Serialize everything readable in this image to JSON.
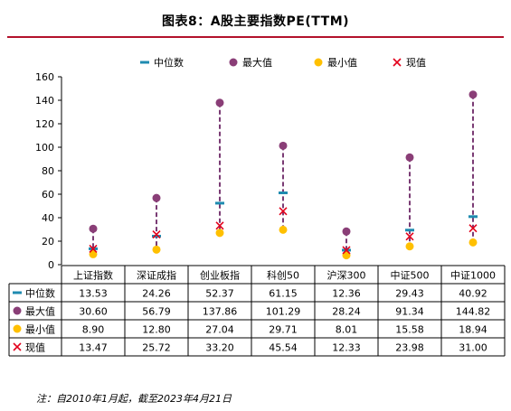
{
  "header": {
    "title": "图表8：A股主要指数PE(TTM)"
  },
  "footer": {
    "note": "注：自2010年1月起，截至2023年4月21日"
  },
  "colors": {
    "median": "#1f8bb0",
    "max": "#8a3e77",
    "min": "#ffc000",
    "current": "#e3001b",
    "range_line": "#7a3b74",
    "title_rule": "#b3122b"
  },
  "chart_data": {
    "type": "scatter",
    "title": "图表8：A股主要指数PE(TTM)",
    "xlabel": "",
    "ylabel": "",
    "ylim": [
      0,
      160
    ],
    "yticks": [
      "0",
      "20",
      "40",
      "60",
      "80",
      "100",
      "120",
      "140",
      "160"
    ],
    "grid": false,
    "legend_position": "top",
    "categories": [
      "上证指数",
      "深证成指",
      "创业板指",
      "科创50",
      "沪深300",
      "中证500",
      "中证1000"
    ],
    "series": [
      {
        "key": "median",
        "name": "中位数",
        "marker": "dash",
        "values": [
          13.53,
          24.26,
          52.37,
          61.15,
          12.36,
          29.43,
          40.92
        ],
        "labels": [
          "13.53",
          "24.26",
          "52.37",
          "61.15",
          "12.36",
          "29.43",
          "40.92"
        ]
      },
      {
        "key": "max",
        "name": "最大值",
        "marker": "circle",
        "values": [
          30.6,
          56.79,
          137.86,
          101.29,
          28.24,
          91.34,
          144.82
        ],
        "labels": [
          "30.60",
          "56.79",
          "137.86",
          "101.29",
          "28.24",
          "91.34",
          "144.82"
        ]
      },
      {
        "key": "min",
        "name": "最小值",
        "marker": "circle",
        "values": [
          8.9,
          12.8,
          27.04,
          29.71,
          8.01,
          15.58,
          18.94
        ],
        "labels": [
          "8.90",
          "12.80",
          "27.04",
          "29.71",
          "8.01",
          "15.58",
          "18.94"
        ]
      },
      {
        "key": "current",
        "name": "现值",
        "marker": "x",
        "values": [
          13.47,
          25.72,
          33.2,
          45.54,
          12.33,
          23.98,
          31.0
        ],
        "labels": [
          "13.47",
          "25.72",
          "33.20",
          "45.54",
          "12.33",
          "23.98",
          "31.00"
        ]
      }
    ],
    "table": true
  }
}
